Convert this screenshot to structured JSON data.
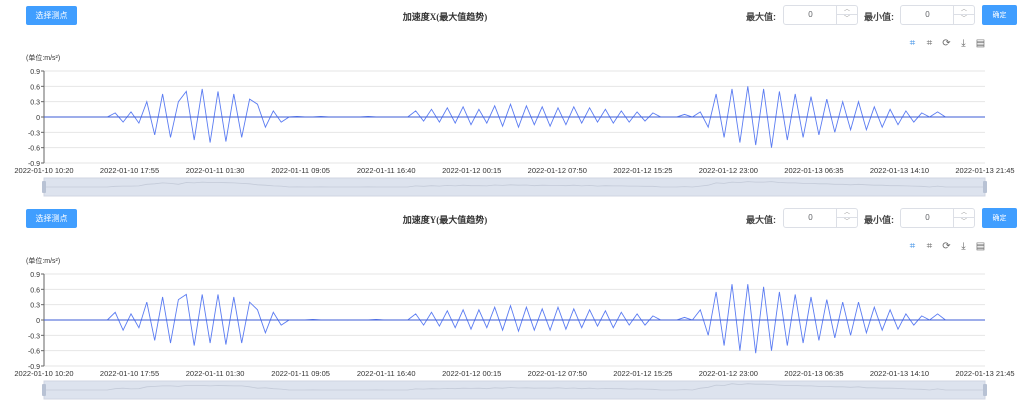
{
  "panels": [
    {
      "select_button": "选择测点",
      "title": "加速度X(最大值趋势)",
      "max_label": "最大值:",
      "max_value": "0",
      "min_label": "最小值:",
      "min_value": "0",
      "confirm_button": "确定",
      "toolbox": [
        "zoom-icon",
        "zoom-reset-icon",
        "restore-icon",
        "download-icon",
        "data-view-icon"
      ],
      "chart_data": {
        "type": "line",
        "ylabel": "(单位:m/s²)",
        "ylim": [
          -0.9,
          0.9
        ],
        "yticks": [
          "0.9",
          "0.6",
          "0.3",
          "0",
          "-0.3",
          "-0.6",
          "-0.9"
        ],
        "xticks": [
          "2022-01-10 10:20",
          "2022-01-10 17:55",
          "2022-01-11 01:30",
          "2022-01-11 09:05",
          "2022-01-11 16:40",
          "2022-01-12 00:15",
          "2022-01-12 07:50",
          "2022-01-12 15:25",
          "2022-01-12 23:00",
          "2022-01-13 06:35",
          "2022-01-13 14:10",
          "2022-01-13 21:45"
        ],
        "x_range": [
          "2022-01-10 10:20",
          "2022-01-13 21:45"
        ],
        "grid": true,
        "color": "#5b7cf2",
        "values": [
          0,
          0,
          0,
          0,
          0,
          0,
          0,
          0,
          0,
          0.08,
          -0.1,
          0.1,
          -0.12,
          0.3,
          -0.35,
          0.45,
          -0.4,
          0.3,
          0.5,
          -0.45,
          0.55,
          -0.5,
          0.5,
          -0.48,
          0.45,
          -0.4,
          0.35,
          0.25,
          -0.2,
          0.12,
          -0.1,
          0,
          0.01,
          0,
          0,
          0.01,
          0,
          0,
          0,
          0,
          0,
          0.01,
          0,
          0,
          0,
          0,
          0,
          0.12,
          -0.08,
          0.15,
          -0.1,
          0.18,
          -0.12,
          0.2,
          -0.15,
          0.15,
          -0.12,
          0.22,
          -0.18,
          0.25,
          -0.2,
          0.22,
          -0.15,
          0.2,
          -0.18,
          0.18,
          -0.15,
          0.2,
          -0.12,
          0.18,
          -0.1,
          0.15,
          -0.12,
          0.12,
          -0.1,
          0.1,
          -0.08,
          0.08,
          0,
          0,
          0,
          0.05,
          0,
          0.1,
          -0.2,
          0.45,
          -0.4,
          0.55,
          -0.5,
          0.6,
          -0.55,
          0.55,
          -0.6,
          0.5,
          -0.45,
          0.45,
          -0.4,
          0.4,
          -0.35,
          0.35,
          -0.3,
          0.3,
          -0.25,
          0.3,
          -0.25,
          0.2,
          -0.2,
          0.15,
          -0.15,
          0.12,
          -0.1,
          0.08,
          0,
          0.1,
          0,
          0,
          0,
          0,
          0,
          0
        ]
      }
    },
    {
      "select_button": "选择测点",
      "title": "加速度Y(最大值趋势)",
      "max_label": "最大值:",
      "max_value": "0",
      "min_label": "最小值:",
      "min_value": "0",
      "confirm_button": "确定",
      "toolbox": [
        "zoom-icon",
        "zoom-reset-icon",
        "restore-icon",
        "download-icon",
        "data-view-icon"
      ],
      "chart_data": {
        "type": "line",
        "ylabel": "(单位:m/s²)",
        "ylim": [
          -0.9,
          0.9
        ],
        "yticks": [
          "0.9",
          "0.6",
          "0.3",
          "0",
          "-0.3",
          "-0.6",
          "-0.9"
        ],
        "xticks": [
          "2022-01-10 10:20",
          "2022-01-10 17:55",
          "2022-01-11 01:30",
          "2022-01-11 09:05",
          "2022-01-11 16:40",
          "2022-01-12 00:15",
          "2022-01-12 07:50",
          "2022-01-12 15:25",
          "2022-01-12 23:00",
          "2022-01-13 06:35",
          "2022-01-13 14:10",
          "2022-01-13 21:45"
        ],
        "x_range": [
          "2022-01-10 10:20",
          "2022-01-13 21:45"
        ],
        "grid": true,
        "color": "#5b7cf2",
        "values": [
          0,
          0,
          0,
          0,
          0,
          0,
          0,
          0,
          0,
          0.15,
          -0.2,
          0.12,
          -0.15,
          0.35,
          -0.4,
          0.45,
          -0.45,
          0.4,
          0.5,
          -0.5,
          0.5,
          -0.45,
          0.5,
          -0.48,
          0.45,
          -0.45,
          0.35,
          0.2,
          -0.25,
          0.15,
          -0.1,
          0,
          0,
          0,
          0.01,
          0,
          0,
          0,
          0,
          0,
          0,
          0,
          0.01,
          0,
          0,
          0,
          0,
          0.12,
          -0.1,
          0.15,
          -0.12,
          0.18,
          -0.15,
          0.2,
          -0.18,
          0.2,
          -0.15,
          0.25,
          -0.2,
          0.28,
          -0.22,
          0.25,
          -0.2,
          0.22,
          -0.2,
          0.25,
          -0.18,
          0.22,
          -0.15,
          0.2,
          -0.12,
          0.18,
          -0.15,
          0.15,
          -0.1,
          0.12,
          -0.1,
          0.08,
          0,
          0,
          0,
          0.05,
          0,
          0.2,
          -0.3,
          0.55,
          -0.5,
          0.7,
          -0.6,
          0.7,
          -0.65,
          0.65,
          -0.6,
          0.55,
          -0.5,
          0.5,
          -0.45,
          0.45,
          -0.4,
          0.4,
          -0.35,
          0.35,
          -0.3,
          0.35,
          -0.25,
          0.25,
          -0.2,
          0.2,
          -0.18,
          0.12,
          -0.1,
          0.08,
          0,
          0.12,
          0,
          0,
          0,
          0,
          0,
          0
        ]
      }
    }
  ]
}
